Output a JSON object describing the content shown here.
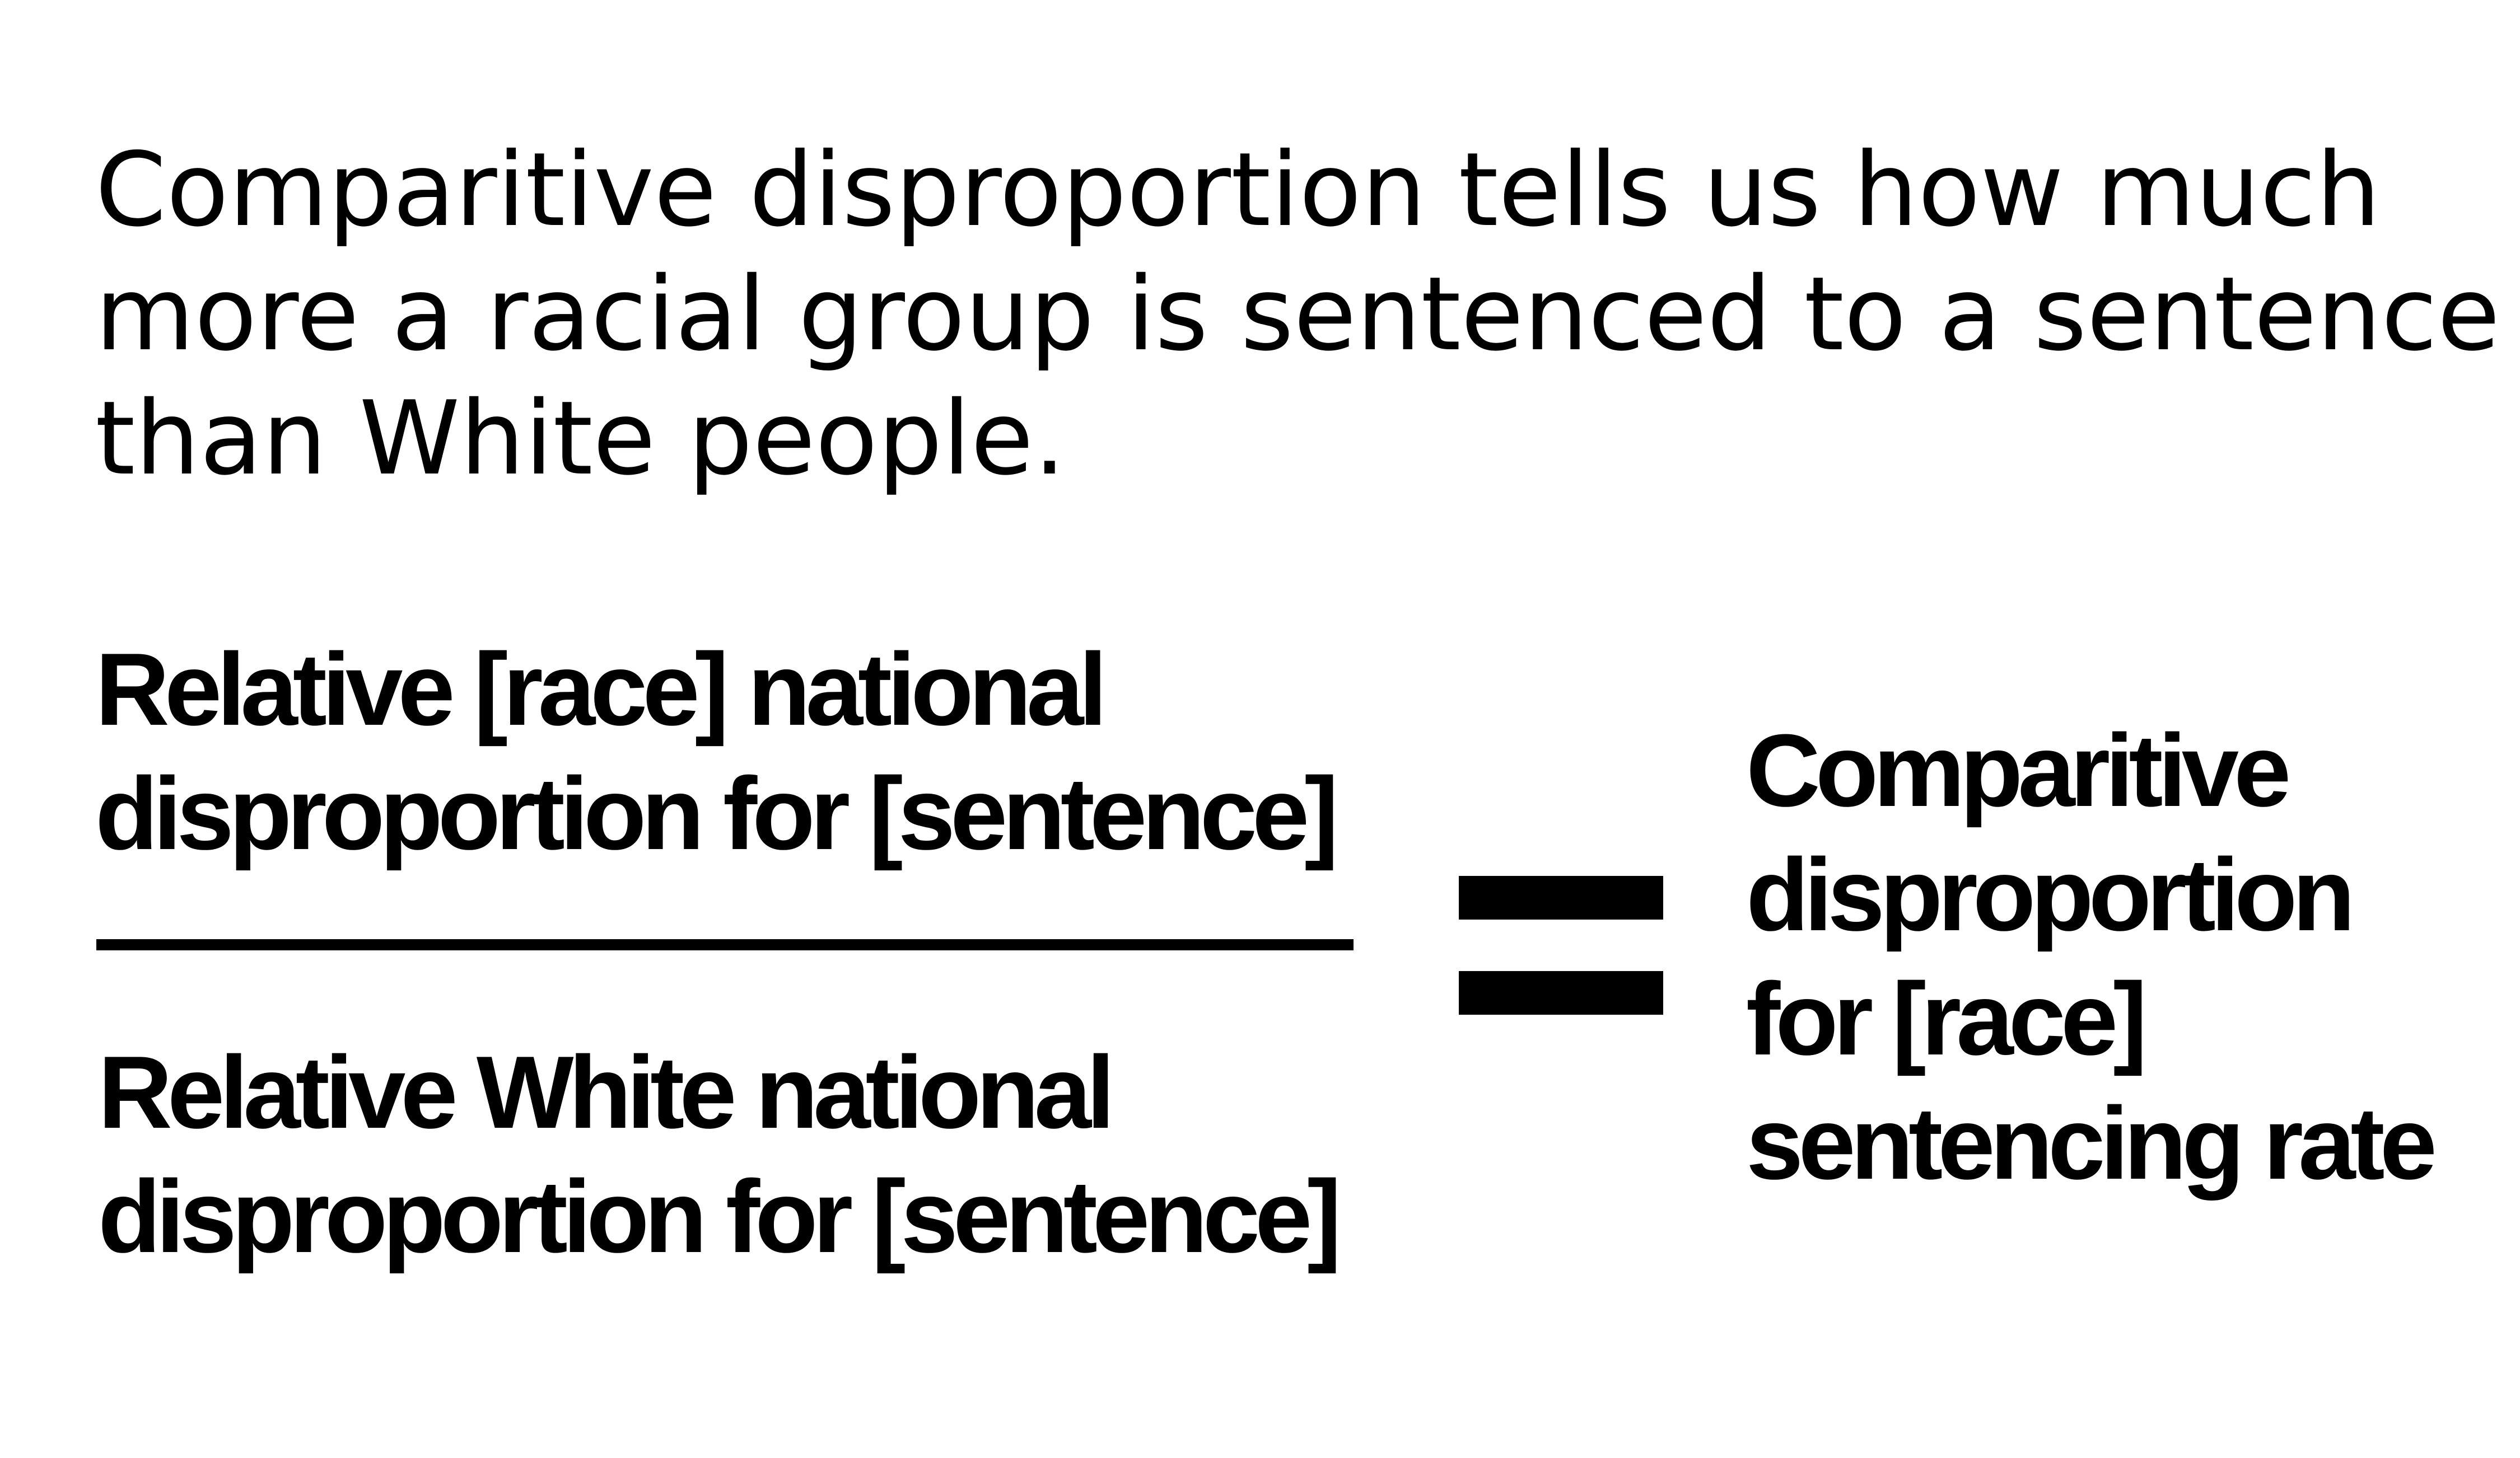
{
  "intro": {
    "lines": [
      "Comparitive disproportion tells us how much",
      "more a racial group is sentenced to a sentence",
      "than White people."
    ]
  },
  "formula": {
    "numerator": {
      "lines": [
        "Relative [race] national",
        "disproportion for [sentence]"
      ]
    },
    "denominator": {
      "lines": [
        "Relative White national",
        "disproportion for [sentence]"
      ]
    },
    "equals_symbol": "=",
    "result": {
      "lines": [
        "Comparitive",
        "disproportion",
        "for [race]",
        "sentencing rate"
      ]
    }
  }
}
